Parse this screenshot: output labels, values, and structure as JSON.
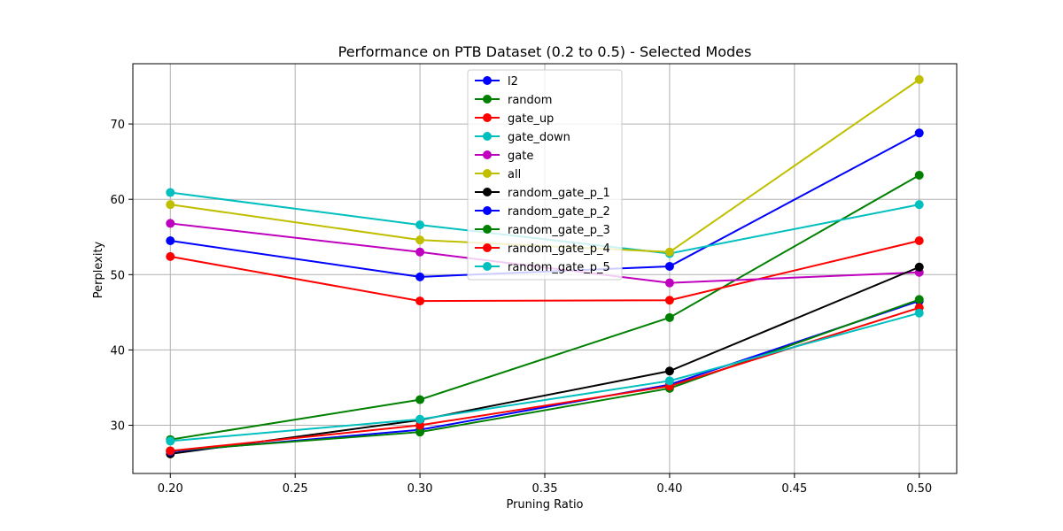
{
  "chart_data": {
    "type": "line",
    "title": "Performance on PTB Dataset (0.2 to 0.5) - Selected Modes",
    "xlabel": "Pruning Ratio",
    "ylabel": "Perplexity",
    "x": [
      0.2,
      0.3,
      0.4,
      0.5
    ],
    "xlim": [
      0.185,
      0.515
    ],
    "ylim": [
      23.6,
      78.0
    ],
    "xticks": [
      0.2,
      0.25,
      0.3,
      0.35,
      0.4,
      0.45,
      0.5
    ],
    "xtick_labels": [
      "0.20",
      "0.25",
      "0.30",
      "0.35",
      "0.40",
      "0.45",
      "0.50"
    ],
    "yticks": [
      30,
      40,
      50,
      60,
      70
    ],
    "ytick_labels": [
      "30",
      "40",
      "50",
      "60",
      "70"
    ],
    "grid": true,
    "legend_position": "top-center",
    "series": [
      {
        "name": "l2",
        "color": "#0000ff",
        "values": [
          54.5,
          49.7,
          51.1,
          68.8
        ]
      },
      {
        "name": "random",
        "color": "#008000",
        "values": [
          28.1,
          33.4,
          44.3,
          63.2
        ]
      },
      {
        "name": "gate_up",
        "color": "#ff0000",
        "values": [
          52.4,
          46.5,
          46.6,
          54.5
        ]
      },
      {
        "name": "gate_down",
        "color": "#00bfbf",
        "values": [
          60.9,
          56.6,
          52.8,
          59.3
        ]
      },
      {
        "name": "gate",
        "color": "#bf00bf",
        "values": [
          56.8,
          53.0,
          48.9,
          50.3
        ]
      },
      {
        "name": "all",
        "color": "#bfbf00",
        "values": [
          59.3,
          54.6,
          53.0,
          75.9
        ]
      },
      {
        "name": "random_gate_p_1",
        "color": "#000000",
        "values": [
          26.2,
          30.7,
          37.2,
          51.0
        ]
      },
      {
        "name": "random_gate_p_2",
        "color": "#0000ff",
        "values": [
          26.5,
          29.4,
          35.4,
          46.5
        ]
      },
      {
        "name": "random_gate_p_3",
        "color": "#008000",
        "values": [
          26.6,
          29.1,
          34.9,
          46.7
        ]
      },
      {
        "name": "random_gate_p_4",
        "color": "#ff0000",
        "values": [
          26.6,
          30.0,
          35.2,
          45.6
        ]
      },
      {
        "name": "random_gate_p_5",
        "color": "#00bfbf",
        "values": [
          27.9,
          30.8,
          35.9,
          44.9
        ]
      }
    ]
  }
}
